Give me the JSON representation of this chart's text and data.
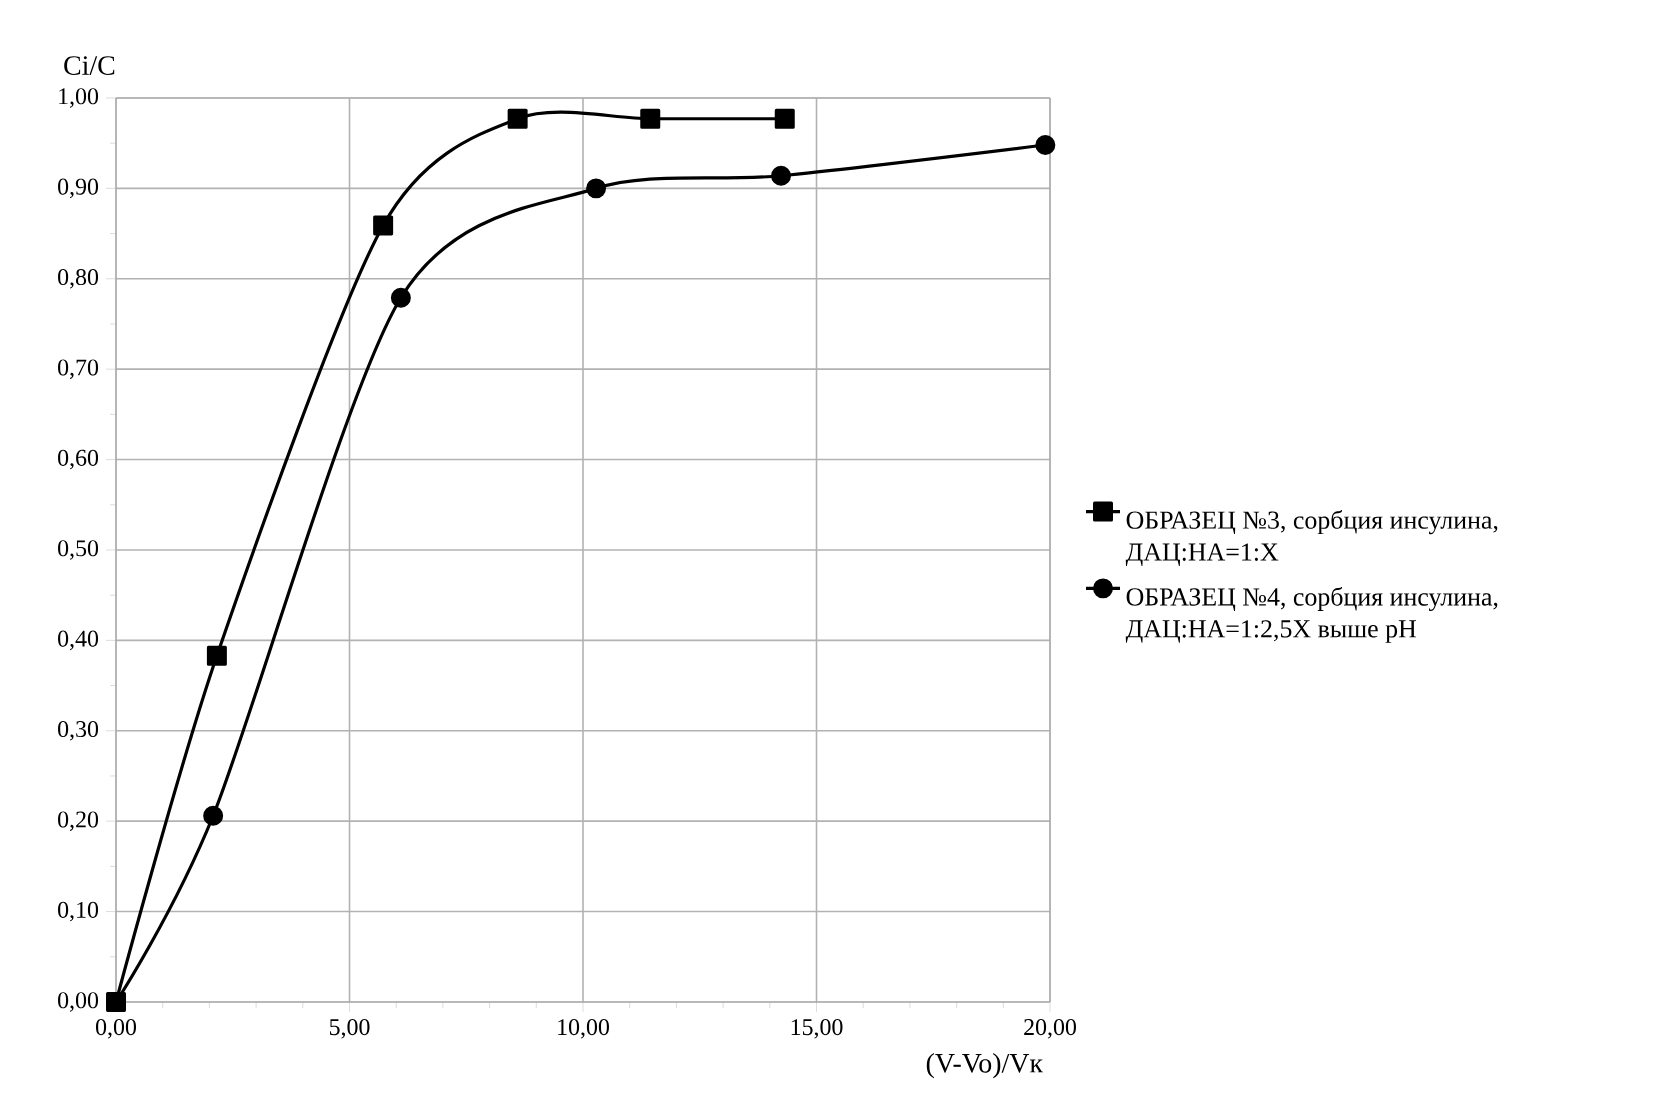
{
  "chart_data": {
    "type": "line",
    "xlabel": "(V-Vo)/Vк",
    "ylabel": "Ci/C",
    "series": [
      {
        "name": "ОБРАЗЕЦ №3, сорбция инсулина, ДАЦ:НА=1:X",
        "color": "#000000",
        "marker": "square",
        "x": [
          0,
          2.16,
          5.72,
          8.6,
          11.44,
          14.32
        ],
        "values": [
          0,
          0.383,
          0.859,
          0.977,
          0.977,
          0.977
        ]
      },
      {
        "name": "ОБРАЗЕЦ №4, сорбция инсулина, ДАЦ:НА=1:2,5X выше pH",
        "color": "#000000",
        "marker": "circle",
        "x": [
          0,
          2.08,
          6.1,
          10.28,
          14.24,
          19.9
        ],
        "values": [
          0,
          0.206,
          0.779,
          0.9,
          0.914,
          0.948
        ]
      }
    ],
    "xlim": [
      0,
      20
    ],
    "ylim": [
      0,
      1
    ],
    "xticks": [
      {
        "value": 0,
        "label": "0,00"
      },
      {
        "value": 5,
        "label": "5,00"
      },
      {
        "value": 10,
        "label": "10,00"
      },
      {
        "value": 15,
        "label": "15,00"
      },
      {
        "value": 20,
        "label": "20,00"
      }
    ],
    "yticks": [
      {
        "value": 0,
        "label": "0,00"
      },
      {
        "value": 0.1,
        "label": "0,10"
      },
      {
        "value": 0.2,
        "label": "0,20"
      },
      {
        "value": 0.3,
        "label": "0,30"
      },
      {
        "value": 0.4,
        "label": "0,40"
      },
      {
        "value": 0.5,
        "label": "0,50"
      },
      {
        "value": 0.6,
        "label": "0,60"
      },
      {
        "value": 0.7,
        "label": "0,70"
      },
      {
        "value": 0.8,
        "label": "0,80"
      },
      {
        "value": 0.9,
        "label": "0,90"
      },
      {
        "value": 1,
        "label": "1,00"
      }
    ],
    "grid": true,
    "legend": "right",
    "line_style": "solid"
  }
}
